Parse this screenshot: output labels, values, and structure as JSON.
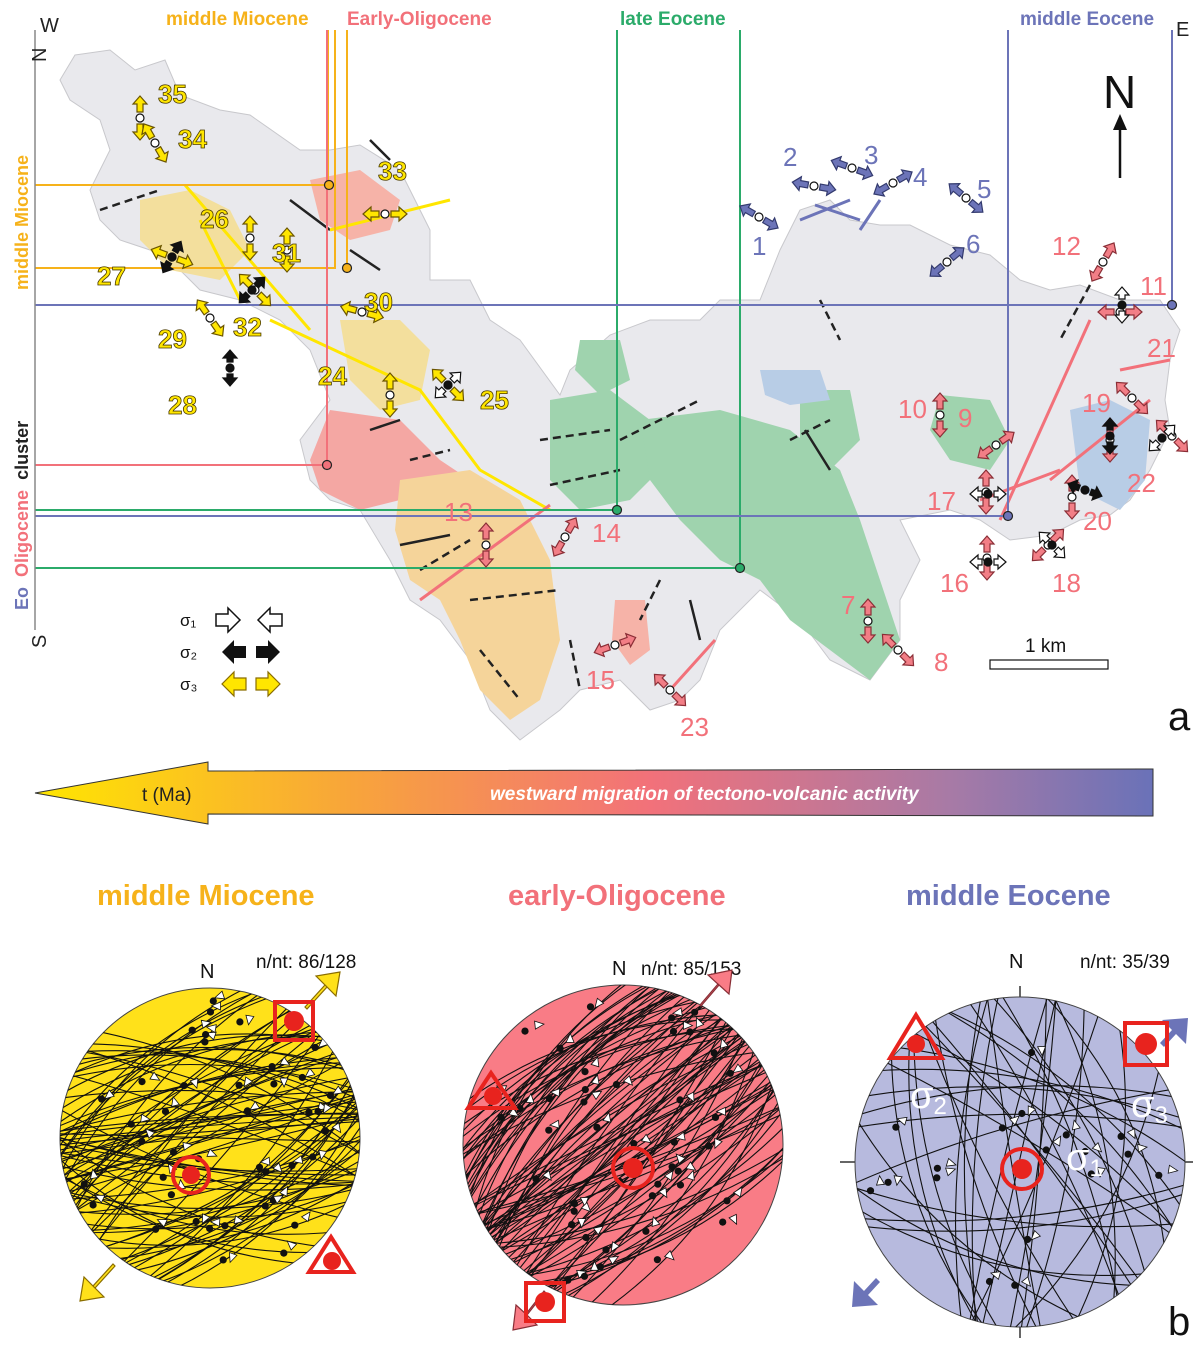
{
  "colors": {
    "miocene": "#f6b21a",
    "oligocene": "#f2717a",
    "late_eocene": "#2bab6a",
    "mid_eocene": "#6c74b8",
    "stereo_miocene": "#ffe11a",
    "stereo_oligocene": "#f97c86",
    "stereo_eocene": "#b7bade"
  },
  "panel_a": {
    "label": "a",
    "compass": {
      "W": "W",
      "E": "E",
      "N": "N",
      "S": "S"
    },
    "north_arrow": "N",
    "top_labels": {
      "middle_miocene": "middle Miocene",
      "early_oligocene": "Early-Oligocene",
      "late_eocene": "late Eocene",
      "middle_eocene": "middle Eocene"
    },
    "side_label": {
      "middle_miocene": "middle Miocene",
      "eo": "Eo",
      "oligocene": "Oligocene",
      "cluster": "cluster"
    },
    "legend": {
      "sigma1": "σ₁",
      "sigma2": "σ₂",
      "sigma3": "σ₃"
    },
    "scale_bar": "1 km",
    "sites": {
      "yellow": [
        "35",
        "34",
        "33",
        "26",
        "31",
        "27",
        "30",
        "29",
        "32",
        "24",
        "25",
        "28"
      ],
      "pink": [
        "12",
        "11",
        "21",
        "10",
        "9",
        "19",
        "22",
        "17",
        "20",
        "13",
        "14",
        "16",
        "18",
        "7",
        "8",
        "15",
        "23"
      ],
      "blue": [
        "2",
        "3",
        "4",
        "5",
        "1",
        "6"
      ]
    }
  },
  "time_arrow": {
    "left_label": "t (Ma)",
    "right_label": "westward migration of tectono-volcanic activity"
  },
  "panel_b": {
    "label": "b",
    "stereonets": [
      {
        "title": "middle Miocene",
        "north": "N",
        "count": "n/nt: 86/128"
      },
      {
        "title": "early-Oligocene",
        "north": "N",
        "count": "n/nt: 85/153"
      },
      {
        "title": "middle Eocene",
        "north": "N",
        "count": "n/nt: 35/39",
        "labels": {
          "sigma1": "σ",
          "sigma1_sub": "1",
          "sigma2": "σ",
          "sigma2_sub": "2",
          "sigma3": "σ",
          "sigma3_sub": "3"
        }
      }
    ]
  }
}
